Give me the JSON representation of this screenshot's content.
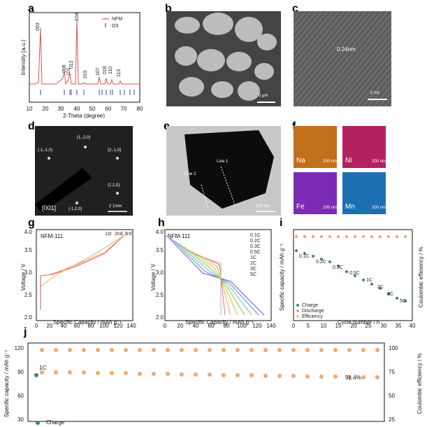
{
  "panels": {
    "a": {
      "label": "a",
      "xlabel": "2-Theta (degree)",
      "ylabel": "Intensity (a.u.)",
      "xticks": [
        "10",
        "20",
        "30",
        "40",
        "50",
        "60",
        "70",
        "80"
      ],
      "legend": [
        "NFM",
        "O3"
      ],
      "peaks": [
        "003",
        "006",
        "101",
        "012",
        "104",
        "015",
        "107",
        "018",
        "110",
        "113"
      ]
    },
    "b": {
      "label": "b",
      "scale": "5 μm"
    },
    "c": {
      "label": "c",
      "dspacing": "0.24nm",
      "scale": "2 nm"
    },
    "d": {
      "label": "d",
      "spots": [
        "(1,-2,0)",
        "(-1,-1,0)",
        "(2,-1,0)",
        "(1,1,0)",
        "(-1,2,0)"
      ],
      "zone": "[001]",
      "scale": "2 1/nm"
    },
    "e": {
      "label": "e",
      "lines": [
        "Line 1",
        "Line 2"
      ],
      "scale": "200 nm"
    },
    "f": {
      "label": "f",
      "maps": [
        {
          "el": "Na",
          "color": "#c3701a",
          "scale": "200 nm"
        },
        {
          "el": "Ni",
          "color": "#b4215f",
          "scale": "200 nm"
        },
        {
          "el": "Fe",
          "color": "#7c2bb6",
          "scale": "200 nm"
        },
        {
          "el": "Mn",
          "color": "#1d6fb3",
          "scale": "200 nm"
        }
      ]
    },
    "g": {
      "label": "g",
      "title": "NFM-111",
      "xlabel": "Specific Capacity / mAh g⁻¹",
      "ylabel": "Voltage / V",
      "xticks": [
        "0",
        "20",
        "40",
        "60",
        "80",
        "100",
        "120",
        "140"
      ],
      "yticks": [
        "2.0",
        "2.5",
        "3.0",
        "3.5",
        "4.0"
      ],
      "legend": [
        "1st",
        "2nd",
        "3rd"
      ]
    },
    "h": {
      "label": "h",
      "title": "NFM-111",
      "xlabel": "Specific Capacity / mAh g⁻¹",
      "ylabel": "Voltage / V",
      "xticks": [
        "0",
        "20",
        "40",
        "60",
        "80",
        "100",
        "120",
        "140"
      ],
      "yticks": [
        "2.0",
        "2.5",
        "3.0",
        "3.5",
        "4.0"
      ],
      "rates": [
        "0.1C",
        "0.2C",
        "0.3C",
        "0.5C",
        "1C",
        "2C",
        "3C",
        "5C"
      ]
    },
    "i": {
      "label": "i",
      "xlabel": "Cycle number / n",
      "ylabel": "Specific capacity / mAh g⁻¹",
      "y2label": "Coulombic efficiency / %",
      "xticks": [
        "0",
        "5",
        "10",
        "15",
        "20",
        "25",
        "30",
        "35",
        "40"
      ],
      "yticks": [
        "0",
        "20",
        "40",
        "60",
        "80",
        "100",
        "120",
        "140"
      ],
      "y2ticks": [
        "0",
        "25",
        "50",
        "75",
        "100"
      ],
      "legend": [
        "Charge",
        "Discharge",
        "Efficiency"
      ],
      "rates": [
        "0.1C",
        "0.2C",
        "0.3C",
        "0.5C",
        "1C",
        "2C",
        "3C",
        "5C"
      ]
    },
    "j": {
      "label": "j",
      "ylabel": "Specific capacity / mAh g⁻¹",
      "y2label": "Coulombic efficiency / %",
      "yticks": [
        "30",
        "60",
        "90",
        "120"
      ],
      "y2ticks": [
        "25",
        "50",
        "75",
        "100"
      ],
      "rate": "1C",
      "retention": "91.4%",
      "legend": [
        "Charge"
      ]
    }
  },
  "colors": {
    "red": "#d9534f",
    "orange": "#f0a15a",
    "tealgrey": "#3f7f8f",
    "blue": "#3a4aa8"
  }
}
